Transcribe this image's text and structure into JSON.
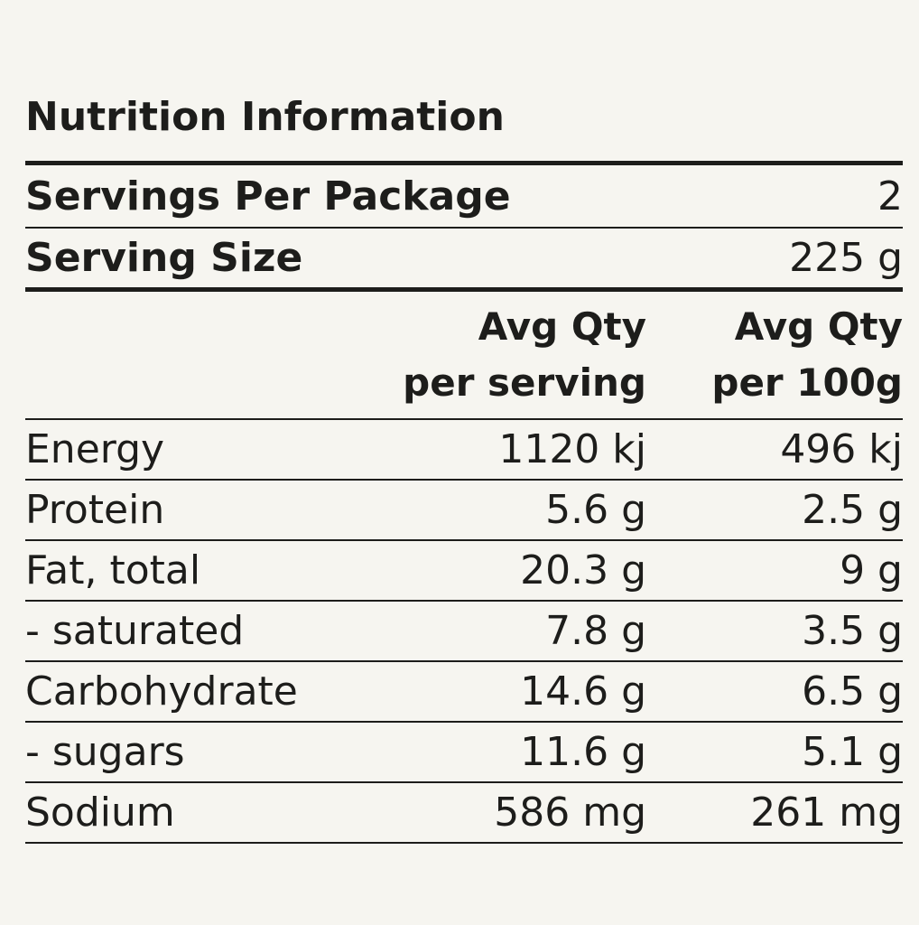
{
  "panel": {
    "title": "Nutrition Information",
    "servings_per_package": {
      "label": "Servings Per Package",
      "value": "2"
    },
    "serving_size": {
      "label": "Serving Size",
      "value": "225 g"
    },
    "columns": [
      {
        "line1": "Avg Qty",
        "line2": "per serving"
      },
      {
        "line1": "Avg Qty",
        "line2": "per 100g"
      }
    ],
    "rows": [
      {
        "label": "Energy",
        "per_serving": "1120 kj",
        "per_100g": "496 kj"
      },
      {
        "label": "Protein",
        "per_serving": "5.6 g",
        "per_100g": "2.5 g"
      },
      {
        "label": "Fat, total",
        "per_serving": "20.3 g",
        "per_100g": "9 g"
      },
      {
        "label": "- saturated",
        "per_serving": "7.8 g",
        "per_100g": "3.5 g"
      },
      {
        "label": "Carbohydrate",
        "per_serving": "14.6 g",
        "per_100g": "6.5 g"
      },
      {
        "label": "- sugars",
        "per_serving": "11.6 g",
        "per_100g": "5.1 g"
      },
      {
        "label": "Sodium",
        "per_serving": "586 mg",
        "per_100g": "261 mg"
      }
    ]
  }
}
